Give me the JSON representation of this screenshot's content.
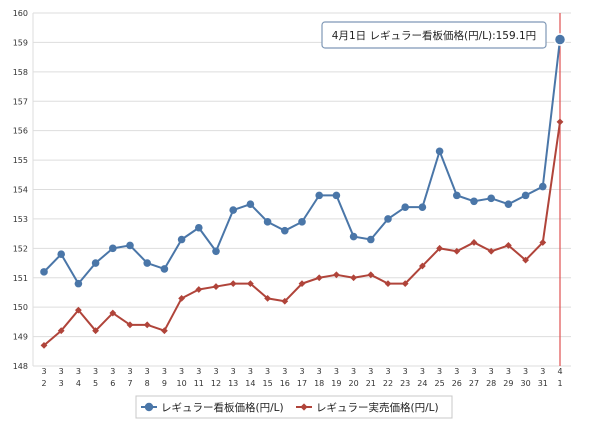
{
  "chart_data": {
    "type": "line",
    "categories": [
      [
        "3",
        "2"
      ],
      [
        "3",
        "3"
      ],
      [
        "3",
        "4"
      ],
      [
        "3",
        "5"
      ],
      [
        "3",
        "6"
      ],
      [
        "3",
        "7"
      ],
      [
        "3",
        "8"
      ],
      [
        "3",
        "9"
      ],
      [
        "3",
        "10"
      ],
      [
        "3",
        "11"
      ],
      [
        "3",
        "12"
      ],
      [
        "3",
        "13"
      ],
      [
        "3",
        "14"
      ],
      [
        "3",
        "15"
      ],
      [
        "3",
        "16"
      ],
      [
        "3",
        "17"
      ],
      [
        "3",
        "18"
      ],
      [
        "3",
        "19"
      ],
      [
        "3",
        "20"
      ],
      [
        "3",
        "21"
      ],
      [
        "3",
        "22"
      ],
      [
        "3",
        "23"
      ],
      [
        "3",
        "24"
      ],
      [
        "3",
        "25"
      ],
      [
        "3",
        "26"
      ],
      [
        "3",
        "27"
      ],
      [
        "3",
        "28"
      ],
      [
        "3",
        "29"
      ],
      [
        "3",
        "30"
      ],
      [
        "3",
        "31"
      ],
      [
        "4",
        "1"
      ]
    ],
    "series": [
      {
        "name": "レギュラー看板価格(円/L)",
        "color": "#4a76a8",
        "marker": "circle",
        "values": [
          151.2,
          151.8,
          150.8,
          151.5,
          152.0,
          152.1,
          151.5,
          151.3,
          152.3,
          152.7,
          151.9,
          153.3,
          153.5,
          152.9,
          152.6,
          152.9,
          153.8,
          153.8,
          152.4,
          152.3,
          153.0,
          153.4,
          153.4,
          155.3,
          153.8,
          153.6,
          153.7,
          153.5,
          153.8,
          154.1,
          159.1
        ]
      },
      {
        "name": "レギュラー実売価格(円/L)",
        "color": "#b0443a",
        "marker": "diamond",
        "values": [
          148.7,
          149.2,
          149.9,
          149.2,
          149.8,
          149.4,
          149.4,
          149.2,
          150.3,
          150.6,
          150.7,
          150.8,
          150.8,
          150.3,
          150.2,
          150.8,
          151.0,
          151.1,
          151.0,
          151.1,
          150.8,
          150.8,
          151.4,
          152.0,
          151.9,
          152.2,
          151.9,
          152.1,
          151.6,
          152.2,
          156.3
        ]
      }
    ],
    "ylim": [
      148,
      160
    ],
    "yticks": [
      148,
      149,
      150,
      151,
      152,
      153,
      154,
      155,
      156,
      157,
      158,
      159,
      160
    ],
    "grid": true,
    "legend_position": "bottom",
    "highlight_index": 30,
    "highlight_line_color": "#e05050",
    "tooltip": {
      "text": "4月1日 レギュラー看板価格(円/L):159.1円"
    }
  }
}
